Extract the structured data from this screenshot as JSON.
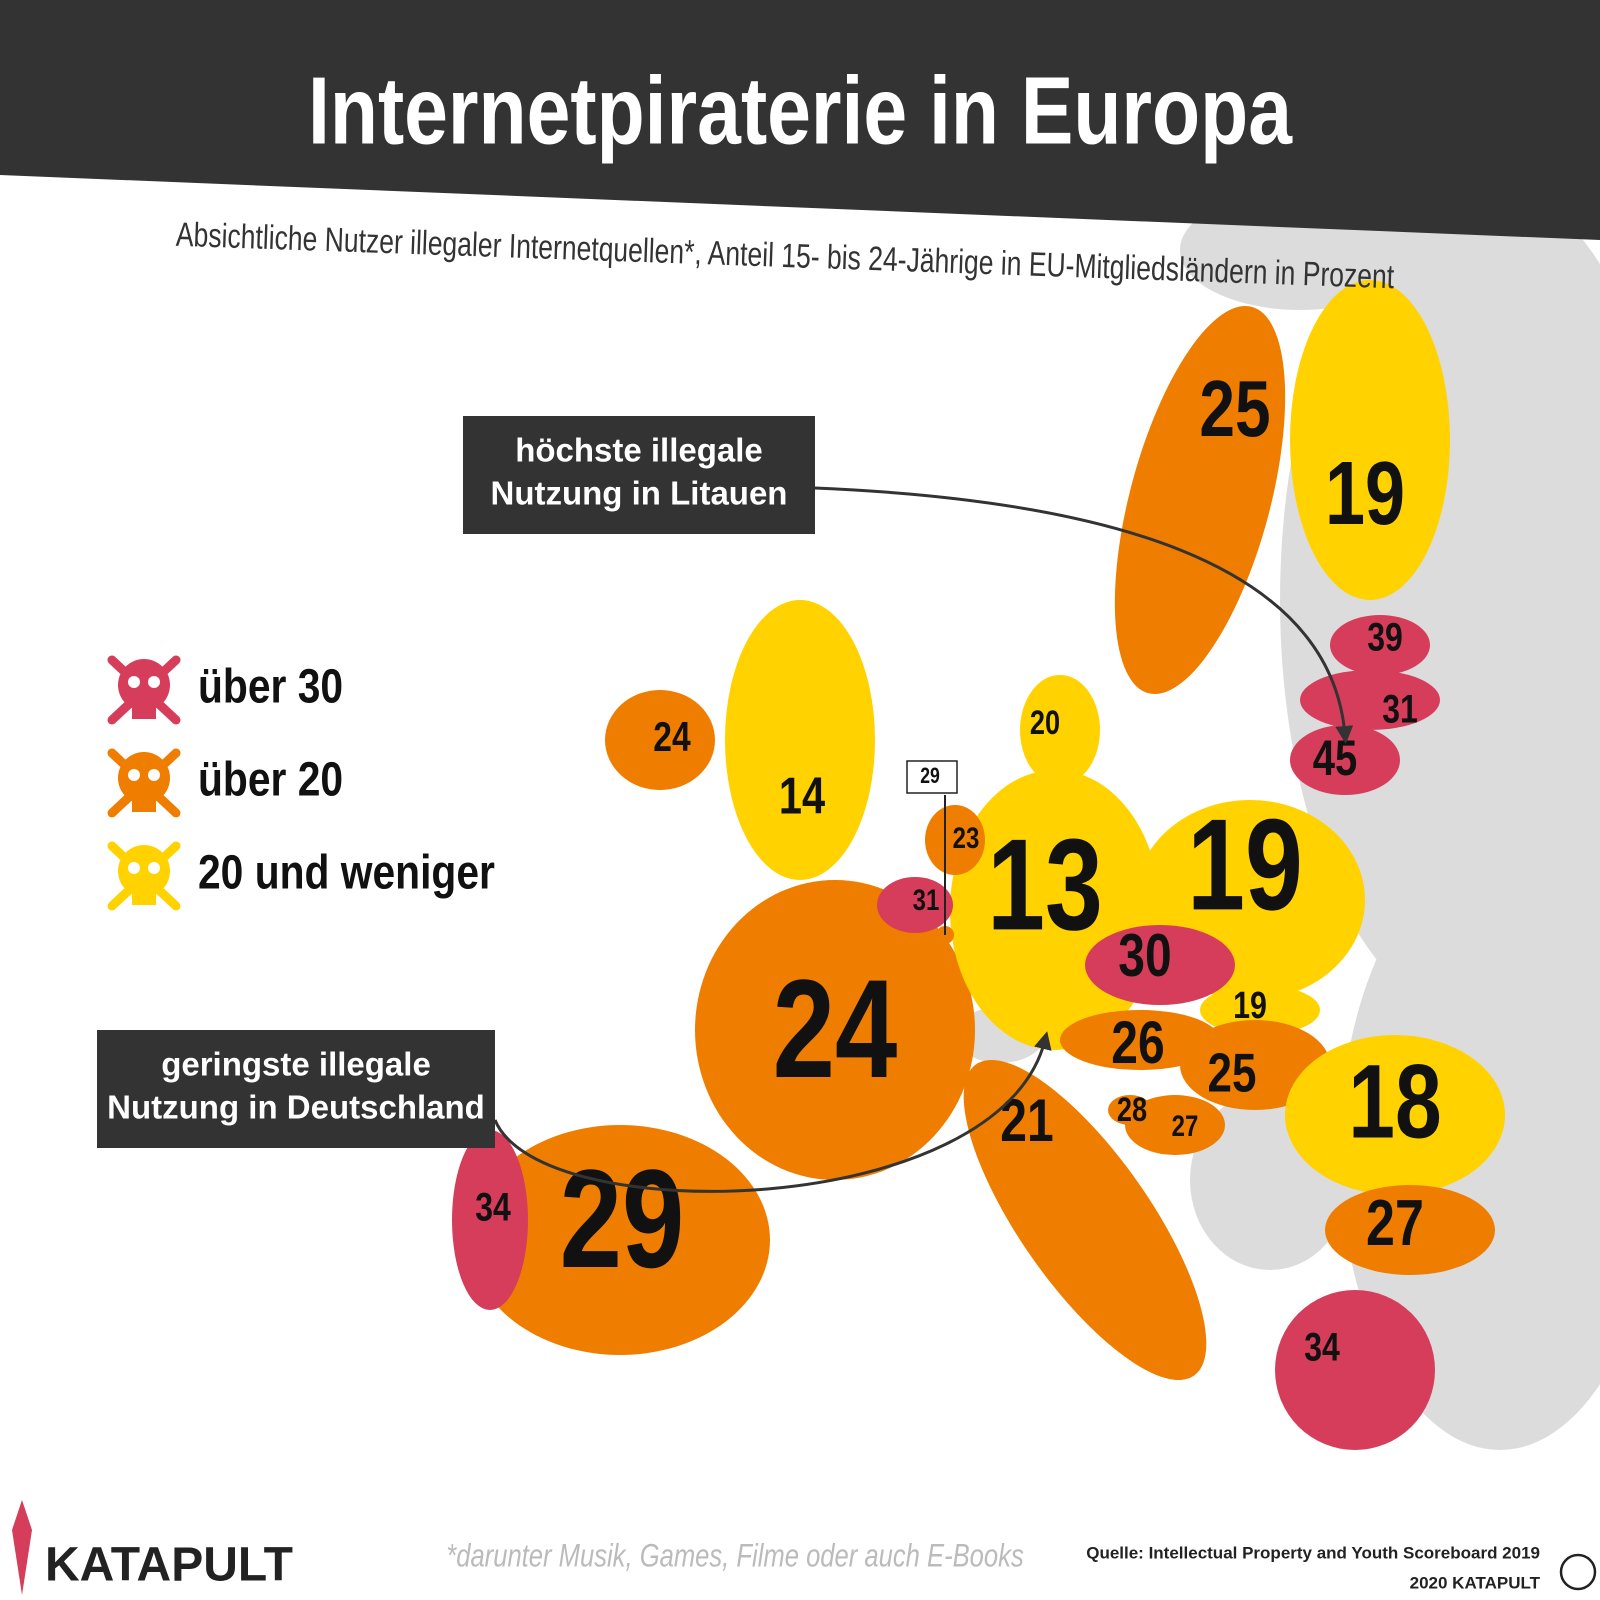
{
  "header": {
    "title": "Internetpiraterie in Europa",
    "subtitle": "Absichtliche Nutzer illegaler Internetquellen*, Anteil 15- bis 24-Jährige in EU-Mitgliedsländern in Prozent"
  },
  "legend": [
    {
      "label": "über 30",
      "color": "#d63d5a"
    },
    {
      "label": "über 20",
      "color": "#ef7d00"
    },
    {
      "label": "20 und weniger",
      "color": "#ffd200"
    }
  ],
  "countries": [
    {
      "value": 25,
      "color": "#ef7d00"
    },
    {
      "value": 19,
      "color": "#ffd200"
    },
    {
      "value": 14,
      "color": "#ffd200"
    },
    {
      "value": 24,
      "color": "#ef7d00"
    },
    {
      "value": 24,
      "color": "#ef7d00"
    },
    {
      "value": 29,
      "color": "#ef7d00"
    },
    {
      "value": 34,
      "color": "#d63d5a"
    },
    {
      "value": 21,
      "color": "#ef7d00"
    },
    {
      "value": 13,
      "color": "#ffd200"
    },
    {
      "value": 19,
      "color": "#ffd200"
    },
    {
      "value": 20,
      "color": "#ffd200"
    },
    {
      "value": 23,
      "color": "#ef7d00"
    },
    {
      "value": 31,
      "color": "#d63d5a"
    },
    {
      "value": 29,
      "color": "#ef7d00"
    },
    {
      "value": 30,
      "color": "#d63d5a"
    },
    {
      "value": 19,
      "color": "#ffd200"
    },
    {
      "value": 26,
      "color": "#ef7d00"
    },
    {
      "value": 25,
      "color": "#ef7d00"
    },
    {
      "value": 28,
      "color": "#ef7d00"
    },
    {
      "value": 27,
      "color": "#ef7d00"
    },
    {
      "value": 18,
      "color": "#ffd200"
    },
    {
      "value": 27,
      "color": "#ef7d00"
    },
    {
      "value": 34,
      "color": "#d63d5a"
    },
    {
      "value": 39,
      "color": "#d63d5a"
    },
    {
      "value": 31,
      "color": "#d63d5a"
    },
    {
      "value": 45,
      "color": "#d63d5a"
    }
  ],
  "callouts": [
    {
      "lines": [
        "höchste illegale",
        "Nutzung in Litauen"
      ]
    },
    {
      "lines": [
        "geringste illegale",
        "Nutzung in Deutschland"
      ]
    }
  ],
  "footer": {
    "logo": "KATAPULT",
    "note": "*darunter Musik, Games, Filme oder auch E-Books",
    "source": "Quelle: Intellectual Property and Youth Scoreboard 2019",
    "copyright": "2020 KATAPULT"
  }
}
